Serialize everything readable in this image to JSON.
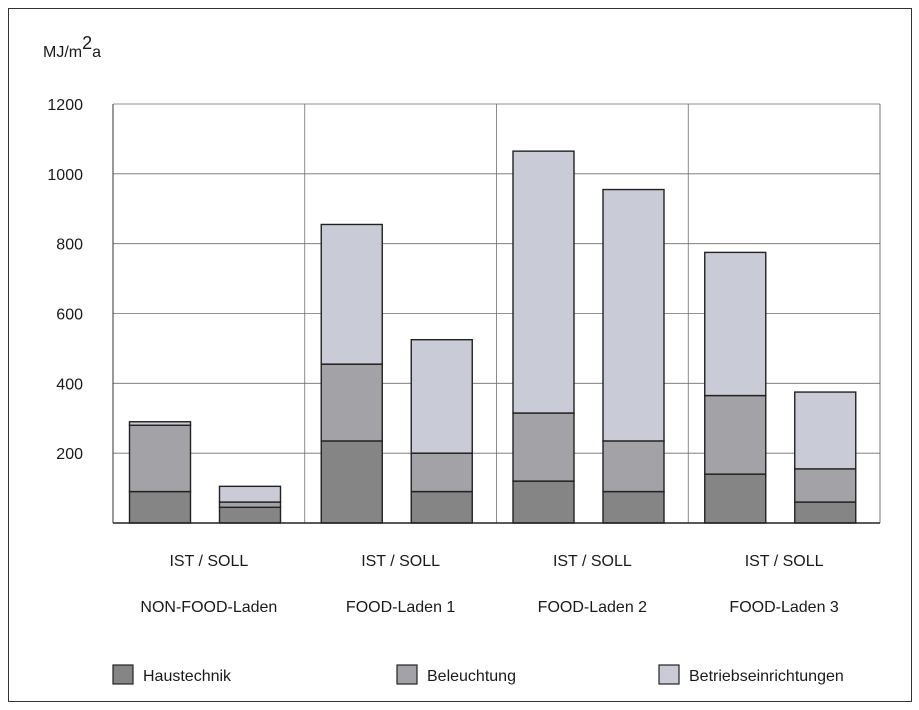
{
  "chart_data": {
    "type": "bar",
    "stacked": true,
    "ylabel_parts": [
      "MJ/m",
      "2",
      "a"
    ],
    "yticks": [
      200,
      400,
      600,
      800,
      1000,
      1200
    ],
    "ylim": [
      0,
      1200
    ],
    "groups": [
      {
        "bar_labels": "IST / SOLL",
        "name": "NON-FOOD-Laden"
      },
      {
        "bar_labels": "IST / SOLL",
        "name": "FOOD-Laden 1"
      },
      {
        "bar_labels": "IST / SOLL",
        "name": "FOOD-Laden 2"
      },
      {
        "bar_labels": "IST / SOLL",
        "name": "FOOD-Laden 3"
      }
    ],
    "categories": [
      "NON-FOOD-Laden IST",
      "NON-FOOD-Laden SOLL",
      "FOOD-Laden 1 IST",
      "FOOD-Laden 1 SOLL",
      "FOOD-Laden 2 IST",
      "FOOD-Laden 2 SOLL",
      "FOOD-Laden 3 IST",
      "FOOD-Laden 3 SOLL"
    ],
    "series": [
      {
        "name": "Haustechnik",
        "color": "#858585",
        "values": [
          90,
          45,
          235,
          90,
          120,
          90,
          140,
          60
        ]
      },
      {
        "name": "Beleuchtung",
        "color": "#a3a3a7",
        "values": [
          190,
          15,
          220,
          110,
          195,
          145,
          225,
          95
        ]
      },
      {
        "name": "Betriebseinrichtungen",
        "color": "#c9cbd6",
        "values": [
          10,
          45,
          400,
          325,
          750,
          720,
          410,
          220
        ]
      }
    ],
    "legend_position": "bottom",
    "grid": true
  }
}
